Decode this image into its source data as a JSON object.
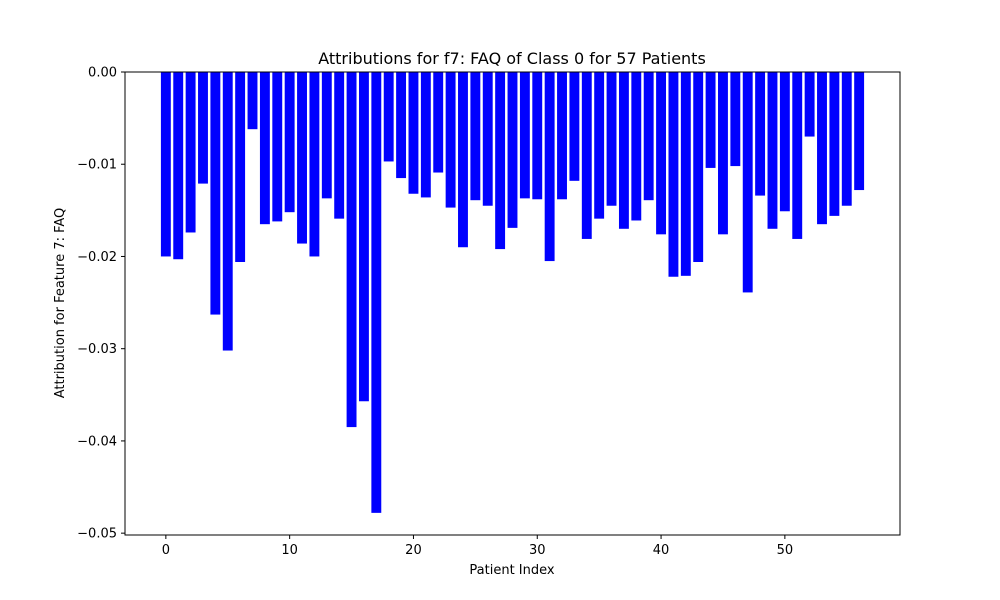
{
  "chart_data": {
    "type": "bar",
    "title": "Attributions for f7: FAQ of Class 0 for 57 Patients",
    "xlabel": "Patient Index",
    "ylabel": "Attribution for Feature 7: FAQ",
    "color": "#0000ff",
    "xlim": [
      -3.3,
      59.3
    ],
    "ylim": [
      -0.0502,
      0.0
    ],
    "x_ticks": [
      0,
      10,
      20,
      30,
      40,
      50
    ],
    "x_tick_labels": [
      "0",
      "10",
      "20",
      "30",
      "40",
      "50"
    ],
    "y_ticks": [
      0.0,
      -0.01,
      -0.02,
      -0.03,
      -0.04,
      -0.05
    ],
    "y_tick_labels": [
      "0.00",
      "−0.01",
      "−0.02",
      "−0.03",
      "−0.04",
      "−0.05"
    ],
    "grid": false,
    "x": [
      0,
      1,
      2,
      3,
      4,
      5,
      6,
      7,
      8,
      9,
      10,
      11,
      12,
      13,
      14,
      15,
      16,
      17,
      18,
      19,
      20,
      21,
      22,
      23,
      24,
      25,
      26,
      27,
      28,
      29,
      30,
      31,
      32,
      33,
      34,
      35,
      36,
      37,
      38,
      39,
      40,
      41,
      42,
      43,
      44,
      45,
      46,
      47,
      48,
      49,
      50,
      51,
      52,
      53,
      54,
      55,
      56
    ],
    "values": [
      -0.02,
      -0.0203,
      -0.0174,
      -0.0121,
      -0.0263,
      -0.0302,
      -0.0206,
      -0.0062,
      -0.0165,
      -0.0162,
      -0.0152,
      -0.0186,
      -0.02,
      -0.0137,
      -0.0159,
      -0.0385,
      -0.0357,
      -0.0478,
      -0.0097,
      -0.0115,
      -0.0132,
      -0.0136,
      -0.0109,
      -0.0147,
      -0.019,
      -0.0139,
      -0.0145,
      -0.0192,
      -0.0169,
      -0.0137,
      -0.0138,
      -0.0205,
      -0.0138,
      -0.0118,
      -0.0181,
      -0.0159,
      -0.0145,
      -0.017,
      -0.0161,
      -0.0139,
      -0.0176,
      -0.0222,
      -0.0221,
      -0.0206,
      -0.0104,
      -0.0176,
      -0.0102,
      -0.0239,
      -0.0134,
      -0.017,
      -0.0151,
      -0.0181,
      -0.007,
      -0.0165,
      -0.0156,
      -0.0145,
      -0.0128
    ]
  }
}
